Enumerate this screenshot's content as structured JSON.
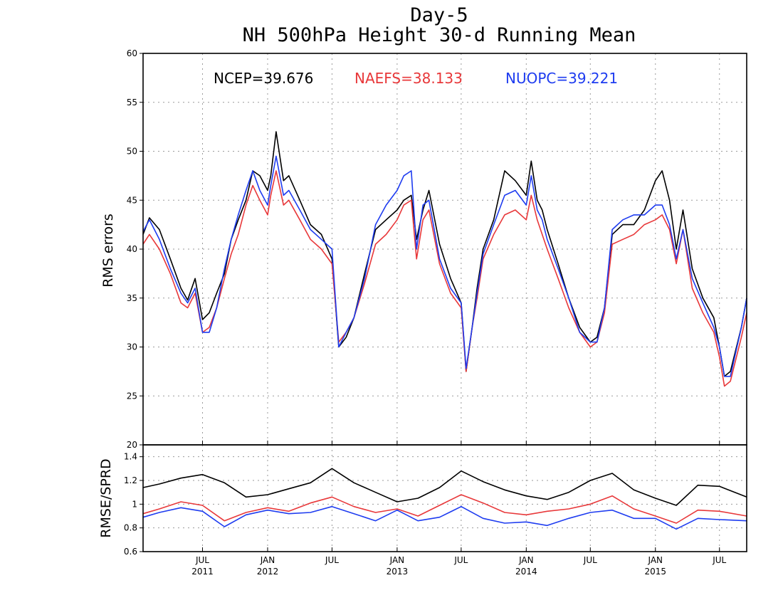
{
  "titles": [
    "Day-5",
    "NH 500hPa Height 30-d Running Mean"
  ],
  "colors": {
    "NCEP": "#000000",
    "NAEFS": "#e8383a",
    "NUOPC": "#1e3cf0"
  },
  "chart_data": [
    {
      "type": "line",
      "ylabel": "RMS errors",
      "ylim": [
        20,
        60
      ],
      "yticks": [
        20,
        25,
        30,
        35,
        40,
        45,
        50,
        55,
        60
      ],
      "ytick_labels": [
        "20",
        "25",
        "30",
        "35",
        "40",
        "45",
        "50",
        "55",
        "60"
      ],
      "xlim": [
        "2011-01-14",
        "2015-09-16"
      ],
      "grid": true,
      "legend": [
        {
          "text": "NCEP=39.676",
          "series": "NCEP"
        },
        {
          "text": "NAEFS=38.133",
          "series": "NAEFS"
        },
        {
          "text": "NUOPC=39.221",
          "series": "NUOPC"
        }
      ],
      "series": [
        {
          "name": "NCEP",
          "x": [
            "2011-01-14",
            "2011-02-01",
            "2011-03-01",
            "2011-04-01",
            "2011-05-01",
            "2011-05-20",
            "2011-06-10",
            "2011-07-01",
            "2011-07-20",
            "2011-08-10",
            "2011-09-01",
            "2011-09-20",
            "2011-10-10",
            "2011-11-01",
            "2011-11-20",
            "2011-12-10",
            "2012-01-01",
            "2012-01-10",
            "2012-01-25",
            "2012-02-15",
            "2012-03-01",
            "2012-04-01",
            "2012-05-01",
            "2012-06-01",
            "2012-07-01",
            "2012-07-20",
            "2012-08-10",
            "2012-09-01",
            "2012-10-01",
            "2012-11-01",
            "2012-12-01",
            "2013-01-01",
            "2013-01-20",
            "2013-02-10",
            "2013-02-25",
            "2013-03-15",
            "2013-04-01",
            "2013-05-01",
            "2013-06-01",
            "2013-07-01",
            "2013-07-15",
            "2013-08-01",
            "2013-08-15",
            "2013-09-01",
            "2013-10-01",
            "2013-11-01",
            "2013-12-01",
            "2014-01-01",
            "2014-01-15",
            "2014-02-01",
            "2014-02-15",
            "2014-03-01",
            "2014-04-01",
            "2014-05-01",
            "2014-06-01",
            "2014-07-01",
            "2014-07-20",
            "2014-08-10",
            "2014-09-01",
            "2014-10-01",
            "2014-11-01",
            "2014-12-01",
            "2015-01-01",
            "2015-01-20",
            "2015-02-10",
            "2015-03-01",
            "2015-03-20",
            "2015-04-15",
            "2015-05-15",
            "2015-06-15",
            "2015-07-01",
            "2015-07-15",
            "2015-08-01",
            "2015-09-01",
            "2015-09-16"
          ],
          "values": [
            41.5,
            43.2,
            42,
            39,
            36,
            34.8,
            37,
            32.8,
            33.5,
            35.5,
            37.5,
            41,
            43,
            45,
            48,
            47.5,
            46,
            47.5,
            52,
            47,
            47.5,
            45,
            42.5,
            41.5,
            39,
            30,
            31,
            33,
            37.5,
            42,
            43,
            44,
            45,
            45.5,
            41,
            44,
            46,
            40.5,
            37,
            34.5,
            27.5,
            32,
            36,
            40,
            43,
            48,
            47,
            45.5,
            49,
            45,
            44,
            42,
            38.5,
            35,
            32,
            30.5,
            31,
            34,
            41.5,
            42.5,
            42.5,
            44,
            47,
            48,
            45,
            40,
            44,
            38,
            35,
            33,
            30,
            27,
            27.5,
            32,
            35
          ]
        },
        {
          "name": "NAEFS",
          "x": [
            "2011-01-14",
            "2011-02-01",
            "2011-03-01",
            "2011-04-01",
            "2011-05-01",
            "2011-05-20",
            "2011-06-10",
            "2011-07-01",
            "2011-07-20",
            "2011-08-10",
            "2011-09-01",
            "2011-09-20",
            "2011-10-10",
            "2011-11-01",
            "2011-11-20",
            "2011-12-10",
            "2012-01-01",
            "2012-01-10",
            "2012-01-25",
            "2012-02-15",
            "2012-03-01",
            "2012-04-01",
            "2012-05-01",
            "2012-06-01",
            "2012-07-01",
            "2012-07-20",
            "2012-08-10",
            "2012-09-01",
            "2012-10-01",
            "2012-11-01",
            "2012-12-01",
            "2013-01-01",
            "2013-01-20",
            "2013-02-10",
            "2013-02-25",
            "2013-03-15",
            "2013-04-01",
            "2013-05-01",
            "2013-06-01",
            "2013-07-01",
            "2013-07-15",
            "2013-08-01",
            "2013-08-15",
            "2013-09-01",
            "2013-10-01",
            "2013-11-01",
            "2013-12-01",
            "2014-01-01",
            "2014-01-15",
            "2014-02-01",
            "2014-02-15",
            "2014-03-01",
            "2014-04-01",
            "2014-05-01",
            "2014-06-01",
            "2014-07-01",
            "2014-07-20",
            "2014-08-10",
            "2014-09-01",
            "2014-10-01",
            "2014-11-01",
            "2014-12-01",
            "2015-01-01",
            "2015-01-20",
            "2015-02-10",
            "2015-03-01",
            "2015-03-20",
            "2015-04-15",
            "2015-05-15",
            "2015-06-15",
            "2015-07-01",
            "2015-07-15",
            "2015-08-01",
            "2015-09-01",
            "2015-09-16"
          ],
          "values": [
            40.5,
            41.5,
            40,
            37.5,
            34.5,
            34,
            35.5,
            31.5,
            32,
            34,
            37,
            39.5,
            41.5,
            44.5,
            46.5,
            45,
            43.5,
            45.5,
            48,
            44.5,
            45,
            43,
            41,
            40,
            38.5,
            30.5,
            31.5,
            33,
            36.5,
            40.5,
            41.5,
            43,
            44.5,
            45,
            39,
            43,
            44,
            38.5,
            35.5,
            34,
            27.5,
            32,
            35,
            39,
            41.5,
            43.5,
            44,
            43,
            45.5,
            43,
            41.5,
            40,
            37,
            34,
            31.5,
            30,
            30.5,
            33.5,
            40.5,
            41,
            41.5,
            42.5,
            43,
            43.5,
            42,
            38.5,
            42,
            36,
            33.5,
            31.5,
            29,
            26,
            26.5,
            31,
            33.5
          ]
        },
        {
          "name": "NUOPC",
          "x": [
            "2011-01-14",
            "2011-02-01",
            "2011-03-01",
            "2011-04-01",
            "2011-05-01",
            "2011-05-20",
            "2011-06-10",
            "2011-07-01",
            "2011-07-20",
            "2011-08-10",
            "2011-09-01",
            "2011-09-20",
            "2011-10-10",
            "2011-11-01",
            "2011-11-20",
            "2011-12-10",
            "2012-01-01",
            "2012-01-10",
            "2012-01-25",
            "2012-02-15",
            "2012-03-01",
            "2012-04-01",
            "2012-05-01",
            "2012-06-01",
            "2012-07-01",
            "2012-07-20",
            "2012-08-10",
            "2012-09-01",
            "2012-10-01",
            "2012-11-01",
            "2012-12-01",
            "2013-01-01",
            "2013-01-20",
            "2013-02-10",
            "2013-02-25",
            "2013-03-15",
            "2013-04-01",
            "2013-05-01",
            "2013-06-01",
            "2013-07-01",
            "2013-07-15",
            "2013-08-01",
            "2013-08-15",
            "2013-09-01",
            "2013-10-01",
            "2013-11-01",
            "2013-12-01",
            "2014-01-01",
            "2014-01-15",
            "2014-02-01",
            "2014-02-15",
            "2014-03-01",
            "2014-04-01",
            "2014-05-01",
            "2014-06-01",
            "2014-07-01",
            "2014-07-20",
            "2014-08-10",
            "2014-09-01",
            "2014-10-01",
            "2014-11-01",
            "2014-12-01",
            "2015-01-01",
            "2015-01-20",
            "2015-02-10",
            "2015-03-01",
            "2015-03-20",
            "2015-04-15",
            "2015-05-15",
            "2015-06-15",
            "2015-07-01",
            "2015-07-15",
            "2015-08-01",
            "2015-09-01",
            "2015-09-16"
          ],
          "values": [
            41.8,
            43,
            41,
            38,
            35.5,
            34.5,
            36,
            31.5,
            31.5,
            34,
            38,
            41,
            43.5,
            46,
            48,
            46,
            44.5,
            46.5,
            49.5,
            45.5,
            46,
            44,
            42,
            41,
            40,
            30,
            31.5,
            33,
            37,
            42.5,
            44.5,
            46,
            47.5,
            48,
            40,
            44.5,
            45,
            39,
            36,
            34.5,
            27.8,
            32,
            35.5,
            39.5,
            42.5,
            45.5,
            46,
            44.5,
            47.5,
            44,
            43,
            41,
            38,
            35,
            31.5,
            30.5,
            30.5,
            34,
            42,
            43,
            43.5,
            43.5,
            44.5,
            44.5,
            42.5,
            39,
            42,
            37,
            34.5,
            32,
            30,
            27,
            27,
            32,
            35
          ]
        }
      ]
    },
    {
      "type": "line",
      "ylabel": "RMSE/SPRD",
      "ylim": [
        0.6,
        1.5
      ],
      "yticks": [
        0.6,
        0.8,
        1,
        1.2,
        1.4
      ],
      "ytick_labels": [
        "0.6",
        "0.8",
        "1",
        "1.2",
        "1.4"
      ],
      "xlim": [
        "2011-01-14",
        "2015-09-16"
      ],
      "xtick_labels": [
        {
          "date": "2011-07-01",
          "top": "JUL",
          "bottom": "2011"
        },
        {
          "date": "2012-01-01",
          "top": "JAN",
          "bottom": "2012"
        },
        {
          "date": "2012-07-01",
          "top": "JUL",
          "bottom": ""
        },
        {
          "date": "2013-01-01",
          "top": "JAN",
          "bottom": "2013"
        },
        {
          "date": "2013-07-01",
          "top": "JUL",
          "bottom": ""
        },
        {
          "date": "2014-01-01",
          "top": "JAN",
          "bottom": "2014"
        },
        {
          "date": "2014-07-01",
          "top": "JUL",
          "bottom": ""
        },
        {
          "date": "2015-01-01",
          "top": "JAN",
          "bottom": "2015"
        },
        {
          "date": "2015-07-01",
          "top": "JUL",
          "bottom": ""
        }
      ],
      "grid": true,
      "series": [
        {
          "name": "NCEP",
          "x": [
            "2011-01-14",
            "2011-03-01",
            "2011-05-01",
            "2011-07-01",
            "2011-09-01",
            "2011-11-01",
            "2012-01-01",
            "2012-03-01",
            "2012-05-01",
            "2012-07-01",
            "2012-09-01",
            "2012-11-01",
            "2013-01-01",
            "2013-03-01",
            "2013-05-01",
            "2013-07-01",
            "2013-09-01",
            "2013-11-01",
            "2014-01-01",
            "2014-03-01",
            "2014-05-01",
            "2014-07-01",
            "2014-09-01",
            "2014-11-01",
            "2015-01-01",
            "2015-03-01",
            "2015-05-01",
            "2015-07-01",
            "2015-09-16"
          ],
          "values": [
            1.14,
            1.17,
            1.22,
            1.25,
            1.18,
            1.06,
            1.08,
            1.13,
            1.18,
            1.3,
            1.18,
            1.1,
            1.02,
            1.05,
            1.14,
            1.28,
            1.19,
            1.12,
            1.07,
            1.04,
            1.1,
            1.2,
            1.26,
            1.12,
            1.05,
            0.99,
            1.16,
            1.15,
            1.06
          ]
        },
        {
          "name": "NAEFS",
          "x": [
            "2011-01-14",
            "2011-03-01",
            "2011-05-01",
            "2011-07-01",
            "2011-09-01",
            "2011-11-01",
            "2012-01-01",
            "2012-03-01",
            "2012-05-01",
            "2012-07-01",
            "2012-09-01",
            "2012-11-01",
            "2013-01-01",
            "2013-03-01",
            "2013-05-01",
            "2013-07-01",
            "2013-09-01",
            "2013-11-01",
            "2014-01-01",
            "2014-03-01",
            "2014-05-01",
            "2014-07-01",
            "2014-09-01",
            "2014-11-01",
            "2015-01-01",
            "2015-03-01",
            "2015-05-01",
            "2015-07-01",
            "2015-09-16"
          ],
          "values": [
            0.92,
            0.96,
            1.02,
            0.99,
            0.86,
            0.93,
            0.97,
            0.94,
            1.01,
            1.06,
            0.98,
            0.93,
            0.96,
            0.9,
            0.99,
            1.08,
            1.01,
            0.93,
            0.91,
            0.94,
            0.96,
            1,
            1.07,
            0.96,
            0.9,
            0.84,
            0.95,
            0.94,
            0.9
          ]
        },
        {
          "name": "NUOPC",
          "x": [
            "2011-01-14",
            "2011-03-01",
            "2011-05-01",
            "2011-07-01",
            "2011-09-01",
            "2011-11-01",
            "2012-01-01",
            "2012-03-01",
            "2012-05-01",
            "2012-07-01",
            "2012-09-01",
            "2012-11-01",
            "2013-01-01",
            "2013-03-01",
            "2013-05-01",
            "2013-07-01",
            "2013-09-01",
            "2013-11-01",
            "2014-01-01",
            "2014-03-01",
            "2014-05-01",
            "2014-07-01",
            "2014-09-01",
            "2014-11-01",
            "2015-01-01",
            "2015-03-01",
            "2015-05-01",
            "2015-07-01",
            "2015-09-16"
          ],
          "values": [
            0.89,
            0.93,
            0.97,
            0.94,
            0.81,
            0.91,
            0.95,
            0.92,
            0.93,
            0.98,
            0.92,
            0.86,
            0.95,
            0.86,
            0.89,
            0.98,
            0.88,
            0.84,
            0.85,
            0.82,
            0.88,
            0.93,
            0.95,
            0.88,
            0.88,
            0.79,
            0.88,
            0.87,
            0.86
          ]
        }
      ]
    }
  ]
}
